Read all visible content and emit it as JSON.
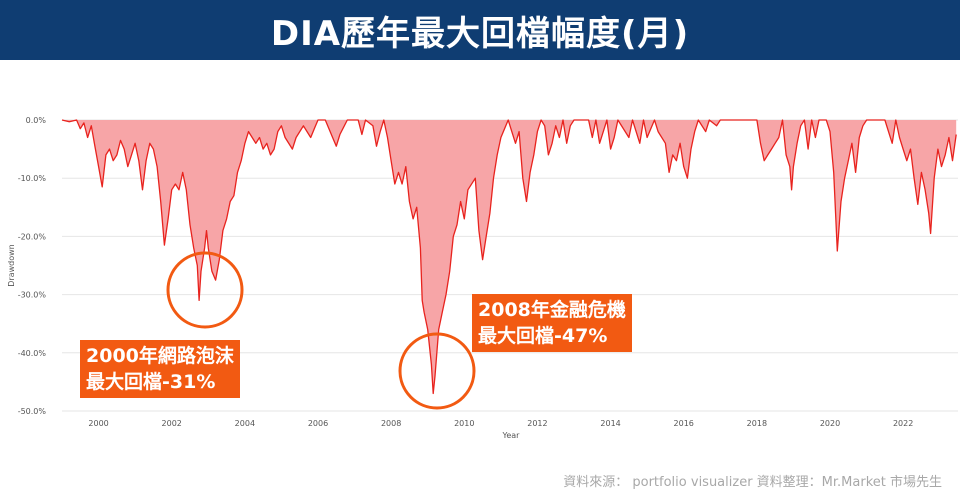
{
  "header": {
    "title": "DIA歷年最大回檔幅度(月)"
  },
  "annotations": [
    {
      "line1": "2000年網路泡沫",
      "line2": "最大回檔-31%"
    },
    {
      "line1": "2008年金融危機",
      "line2": "最大回檔-47%"
    }
  ],
  "credit": "資料來源： portfolio visualizer 資料整理：Mr.Market 市場先生",
  "colors": {
    "header_bg": "#0f3d72",
    "line": "#e8231e",
    "fill": "#f7a5a7",
    "annotation_bg": "#f25a12",
    "circle": "#f25a12"
  },
  "chart_data": {
    "type": "area",
    "title": "DIA歷年最大回檔幅度(月)",
    "xlabel": "Year",
    "ylabel": "Drawdown",
    "xlim": [
      1999.0,
      2023.5
    ],
    "ylim": [
      -50,
      0
    ],
    "x_ticks": [
      "2000",
      "2002",
      "2004",
      "2006",
      "2008",
      "2010",
      "2012",
      "2014",
      "2016",
      "2018",
      "2020",
      "2022"
    ],
    "y_ticks": [
      "0.0%",
      "-10.0%",
      "-20.0%",
      "-30.0%",
      "-40.0%",
      "-50.0%"
    ],
    "grid": true,
    "series": [
      {
        "points": [
          [
            1999.0,
            0
          ],
          [
            1999.2,
            -0.3
          ],
          [
            1999.4,
            0
          ],
          [
            1999.5,
            -1.5
          ],
          [
            1999.6,
            -0.5
          ],
          [
            1999.7,
            -3
          ],
          [
            1999.8,
            -1
          ],
          [
            1999.9,
            -4.5
          ],
          [
            2000.0,
            -8
          ],
          [
            2000.1,
            -11.5
          ],
          [
            2000.2,
            -6
          ],
          [
            2000.3,
            -5
          ],
          [
            2000.4,
            -7
          ],
          [
            2000.5,
            -6
          ],
          [
            2000.6,
            -3.5
          ],
          [
            2000.7,
            -5
          ],
          [
            2000.8,
            -8
          ],
          [
            2000.9,
            -6
          ],
          [
            2001.0,
            -4
          ],
          [
            2001.1,
            -7
          ],
          [
            2001.2,
            -12
          ],
          [
            2001.3,
            -7
          ],
          [
            2001.4,
            -4
          ],
          [
            2001.5,
            -5
          ],
          [
            2001.6,
            -8
          ],
          [
            2001.7,
            -14
          ],
          [
            2001.8,
            -21.5
          ],
          [
            2001.9,
            -17
          ],
          [
            2002.0,
            -12
          ],
          [
            2002.1,
            -11
          ],
          [
            2002.2,
            -12
          ],
          [
            2002.3,
            -9
          ],
          [
            2002.4,
            -12
          ],
          [
            2002.5,
            -18
          ],
          [
            2002.6,
            -22
          ],
          [
            2002.7,
            -25
          ],
          [
            2002.75,
            -31
          ],
          [
            2002.8,
            -26
          ],
          [
            2002.9,
            -22
          ],
          [
            2002.95,
            -19
          ],
          [
            2003.0,
            -22
          ],
          [
            2003.1,
            -26
          ],
          [
            2003.2,
            -27.5
          ],
          [
            2003.3,
            -24
          ],
          [
            2003.4,
            -19
          ],
          [
            2003.5,
            -17
          ],
          [
            2003.6,
            -14
          ],
          [
            2003.7,
            -13
          ],
          [
            2003.8,
            -9
          ],
          [
            2003.9,
            -7
          ],
          [
            2004.0,
            -4
          ],
          [
            2004.1,
            -2
          ],
          [
            2004.3,
            -4
          ],
          [
            2004.4,
            -3
          ],
          [
            2004.5,
            -5
          ],
          [
            2004.6,
            -4
          ],
          [
            2004.7,
            -6
          ],
          [
            2004.8,
            -5
          ],
          [
            2004.9,
            -2
          ],
          [
            2005.0,
            -1
          ],
          [
            2005.1,
            -3
          ],
          [
            2005.3,
            -5
          ],
          [
            2005.4,
            -3
          ],
          [
            2005.6,
            -1
          ],
          [
            2005.8,
            -3
          ],
          [
            2005.9,
            -1.5
          ],
          [
            2006.0,
            0
          ],
          [
            2006.2,
            0
          ],
          [
            2006.4,
            -3
          ],
          [
            2006.5,
            -4.5
          ],
          [
            2006.6,
            -2.5
          ],
          [
            2006.8,
            0
          ],
          [
            2007.1,
            0
          ],
          [
            2007.2,
            -2.5
          ],
          [
            2007.3,
            0
          ],
          [
            2007.5,
            -1
          ],
          [
            2007.6,
            -4.5
          ],
          [
            2007.7,
            -2
          ],
          [
            2007.8,
            0
          ],
          [
            2007.9,
            -3
          ],
          [
            2008.0,
            -7
          ],
          [
            2008.1,
            -11
          ],
          [
            2008.2,
            -9
          ],
          [
            2008.3,
            -11
          ],
          [
            2008.4,
            -8
          ],
          [
            2008.5,
            -14
          ],
          [
            2008.6,
            -17
          ],
          [
            2008.7,
            -15
          ],
          [
            2008.8,
            -22
          ],
          [
            2008.85,
            -31
          ],
          [
            2008.9,
            -33
          ],
          [
            2009.0,
            -36
          ],
          [
            2009.1,
            -42
          ],
          [
            2009.15,
            -47
          ],
          [
            2009.2,
            -44
          ],
          [
            2009.3,
            -36
          ],
          [
            2009.4,
            -33
          ],
          [
            2009.5,
            -30
          ],
          [
            2009.6,
            -26
          ],
          [
            2009.7,
            -20
          ],
          [
            2009.8,
            -18
          ],
          [
            2009.9,
            -14
          ],
          [
            2010.0,
            -17
          ],
          [
            2010.1,
            -12
          ],
          [
            2010.3,
            -10
          ],
          [
            2010.4,
            -19
          ],
          [
            2010.5,
            -24
          ],
          [
            2010.6,
            -20
          ],
          [
            2010.7,
            -16
          ],
          [
            2010.8,
            -10
          ],
          [
            2010.9,
            -6
          ],
          [
            2011.0,
            -3
          ],
          [
            2011.2,
            0
          ],
          [
            2011.3,
            -2
          ],
          [
            2011.4,
            -4
          ],
          [
            2011.5,
            -2
          ],
          [
            2011.6,
            -10
          ],
          [
            2011.7,
            -14
          ],
          [
            2011.8,
            -9
          ],
          [
            2011.9,
            -6
          ],
          [
            2012.0,
            -2
          ],
          [
            2012.1,
            0
          ],
          [
            2012.2,
            -1
          ],
          [
            2012.3,
            -6
          ],
          [
            2012.4,
            -4
          ],
          [
            2012.5,
            -1
          ],
          [
            2012.6,
            -3
          ],
          [
            2012.7,
            0
          ],
          [
            2012.8,
            -4
          ],
          [
            2012.9,
            -1
          ],
          [
            2013.0,
            0
          ],
          [
            2013.4,
            0
          ],
          [
            2013.5,
            -3
          ],
          [
            2013.6,
            0
          ],
          [
            2013.7,
            -4
          ],
          [
            2013.8,
            -2
          ],
          [
            2013.9,
            0
          ],
          [
            2014.0,
            -5
          ],
          [
            2014.1,
            -3
          ],
          [
            2014.2,
            0
          ],
          [
            2014.5,
            -3
          ],
          [
            2014.6,
            0
          ],
          [
            2014.8,
            -4
          ],
          [
            2014.9,
            0
          ],
          [
            2015.0,
            -3
          ],
          [
            2015.2,
            0
          ],
          [
            2015.3,
            -2
          ],
          [
            2015.5,
            -4
          ],
          [
            2015.6,
            -9
          ],
          [
            2015.7,
            -6
          ],
          [
            2015.8,
            -7
          ],
          [
            2015.9,
            -4
          ],
          [
            2016.0,
            -8
          ],
          [
            2016.1,
            -10
          ],
          [
            2016.2,
            -5
          ],
          [
            2016.3,
            -2
          ],
          [
            2016.4,
            0
          ],
          [
            2016.6,
            -2
          ],
          [
            2016.7,
            0
          ],
          [
            2016.9,
            -1
          ],
          [
            2017.0,
            0
          ],
          [
            2017.8,
            0
          ],
          [
            2018.0,
            0
          ],
          [
            2018.1,
            -4
          ],
          [
            2018.2,
            -7
          ],
          [
            2018.3,
            -6
          ],
          [
            2018.4,
            -5
          ],
          [
            2018.5,
            -4
          ],
          [
            2018.6,
            -3
          ],
          [
            2018.7,
            0
          ],
          [
            2018.8,
            -6
          ],
          [
            2018.9,
            -8
          ],
          [
            2018.95,
            -12
          ],
          [
            2019.0,
            -8
          ],
          [
            2019.1,
            -4
          ],
          [
            2019.2,
            -1
          ],
          [
            2019.3,
            0
          ],
          [
            2019.4,
            -5
          ],
          [
            2019.5,
            0
          ],
          [
            2019.6,
            -3
          ],
          [
            2019.7,
            0
          ],
          [
            2019.9,
            0
          ],
          [
            2020.0,
            -2
          ],
          [
            2020.1,
            -9
          ],
          [
            2020.2,
            -22.5
          ],
          [
            2020.3,
            -14
          ],
          [
            2020.4,
            -10
          ],
          [
            2020.5,
            -7
          ],
          [
            2020.6,
            -4
          ],
          [
            2020.7,
            -9
          ],
          [
            2020.8,
            -3
          ],
          [
            2020.9,
            -1
          ],
          [
            2021.0,
            0
          ],
          [
            2021.5,
            0
          ],
          [
            2021.6,
            -2
          ],
          [
            2021.7,
            -4
          ],
          [
            2021.8,
            0
          ],
          [
            2021.9,
            -3
          ],
          [
            2022.0,
            -5
          ],
          [
            2022.1,
            -7
          ],
          [
            2022.2,
            -5
          ],
          [
            2022.3,
            -10
          ],
          [
            2022.4,
            -14.5
          ],
          [
            2022.5,
            -9
          ],
          [
            2022.6,
            -12
          ],
          [
            2022.7,
            -16
          ],
          [
            2022.75,
            -19.5
          ],
          [
            2022.85,
            -10
          ],
          [
            2022.95,
            -5
          ],
          [
            2023.05,
            -8
          ],
          [
            2023.15,
            -6
          ],
          [
            2023.25,
            -3
          ],
          [
            2023.35,
            -7
          ],
          [
            2023.45,
            -2.5
          ]
        ]
      }
    ]
  }
}
